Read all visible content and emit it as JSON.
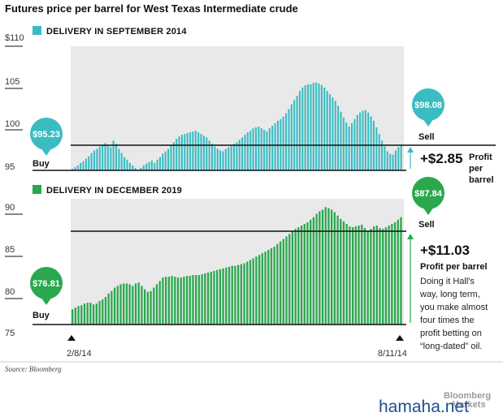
{
  "title": "Futures price per barrel for West Texas Intermediate crude",
  "colors": {
    "sep2014": "#3bbcc3",
    "dec2019": "#2aa84e",
    "grid_band": "#e9e9e9",
    "rule": "#111111"
  },
  "chart_data": [
    {
      "type": "bar",
      "legend": "DELIVERY IN SEPTEMBER 2014",
      "y_ticks": [
        "$110",
        "105",
        "100",
        "95"
      ],
      "ylim": [
        95,
        110
      ],
      "buy": {
        "label": "Buy",
        "price": "$95.23",
        "value": 95.23
      },
      "sell": {
        "label": "Sell",
        "price": "$98.08",
        "value": 98.08
      },
      "profit_delta": "+$2.85",
      "profit_label": "Profit per barrel",
      "values": [
        95.2,
        95.4,
        95.6,
        95.9,
        96.1,
        96.4,
        96.7,
        97.1,
        97.4,
        97.6,
        97.9,
        98.1,
        98.3,
        98.0,
        97.8,
        98.6,
        98.2,
        97.6,
        97.1,
        96.6,
        96.3,
        95.9,
        95.6,
        95.3,
        95.1,
        95.3,
        95.6,
        95.8,
        96.0,
        96.2,
        95.9,
        96.3,
        96.6,
        97.0,
        97.3,
        97.6,
        98.0,
        98.4,
        98.8,
        99.1,
        99.3,
        99.4,
        99.5,
        99.6,
        99.7,
        99.8,
        99.6,
        99.4,
        99.2,
        99.0,
        98.6,
        98.2,
        97.9,
        97.6,
        97.4,
        97.3,
        97.6,
        97.8,
        98.0,
        98.2,
        98.4,
        98.7,
        99.0,
        99.3,
        99.6,
        99.8,
        100.1,
        100.2,
        100.3,
        100.1,
        99.9,
        99.7,
        100.1,
        100.4,
        100.7,
        101.0,
        101.2,
        101.5,
        101.9,
        102.4,
        103.0,
        103.5,
        104.0,
        104.6,
        105.0,
        105.3,
        105.4,
        105.4,
        105.6,
        105.6,
        105.5,
        105.3,
        105.0,
        104.6,
        104.2,
        103.8,
        103.4,
        102.8,
        102.1,
        101.4,
        100.8,
        100.3,
        100.7,
        101.2,
        101.7,
        102.0,
        102.2,
        102.3,
        102.0,
        101.5,
        101.0,
        100.2,
        99.4,
        98.6,
        97.9,
        97.3,
        97.0,
        96.9,
        97.4,
        97.8,
        98.1
      ]
    },
    {
      "type": "bar",
      "legend": "DELIVERY IN DECEMBER 2019",
      "y_ticks": [
        "90",
        "85",
        "80",
        "75"
      ],
      "ylim": [
        75,
        90
      ],
      "buy": {
        "label": "Buy",
        "price": "$76.81",
        "value": 76.81
      },
      "sell": {
        "label": "Sell",
        "price": "$87.84",
        "value": 87.84
      },
      "profit_delta": "+$11.03",
      "profit_label": "Profit per barrel",
      "note": [
        "Doing it Hall's",
        "way, long term,",
        "you make almost",
        "four times the",
        "profit betting on",
        "“long-dated” oil."
      ],
      "values": [
        76.8,
        77.0,
        77.2,
        77.3,
        77.5,
        77.6,
        77.6,
        77.4,
        77.5,
        77.8,
        78.0,
        78.3,
        78.7,
        79.0,
        79.4,
        79.6,
        79.8,
        79.9,
        79.9,
        79.8,
        79.6,
        79.9,
        80.0,
        79.6,
        79.2,
        78.9,
        79.0,
        79.4,
        79.8,
        80.2,
        80.6,
        80.7,
        80.7,
        80.8,
        80.7,
        80.6,
        80.6,
        80.7,
        80.8,
        80.8,
        80.9,
        80.9,
        80.9,
        81.0,
        81.1,
        81.2,
        81.3,
        81.4,
        81.5,
        81.6,
        81.7,
        81.8,
        81.9,
        82.0,
        82.0,
        82.1,
        82.2,
        82.3,
        82.5,
        82.7,
        82.9,
        83.1,
        83.3,
        83.5,
        83.7,
        83.9,
        84.1,
        84.3,
        84.6,
        84.9,
        85.2,
        85.5,
        85.8,
        86.1,
        86.4,
        86.6,
        86.8,
        87.0,
        87.2,
        87.5,
        87.8,
        88.2,
        88.5,
        88.7,
        89.0,
        88.9,
        88.7,
        88.4,
        88.0,
        87.6,
        87.3,
        87.0,
        86.7,
        86.6,
        86.7,
        86.8,
        86.9,
        86.5,
        86.2,
        86.4,
        86.7,
        86.8,
        86.5,
        86.4,
        86.6,
        86.8,
        87.0,
        87.2,
        87.5,
        87.8
      ]
    }
  ],
  "x_axis": {
    "start": "2/8/14",
    "end": "8/11/14"
  },
  "source": "Source: Bloomberg",
  "brand": [
    "Bloomberg",
    "Markets"
  ],
  "watermark": "hamaha.net"
}
